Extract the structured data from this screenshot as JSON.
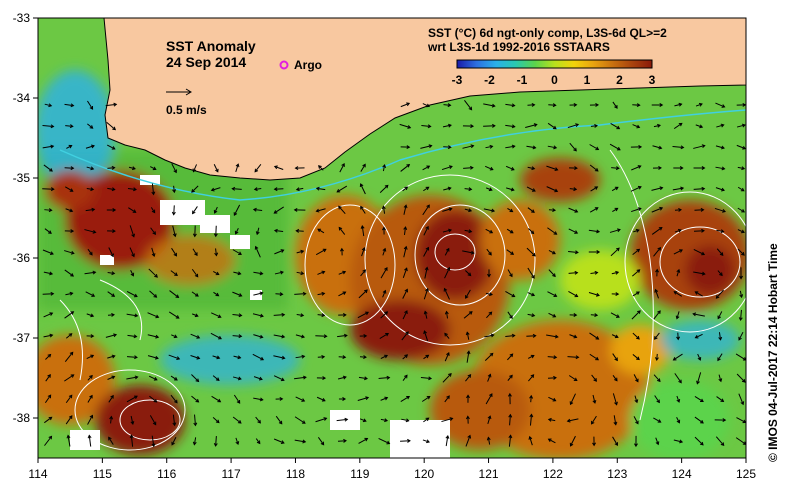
{
  "map": {
    "title": "SST Anomaly",
    "date": "24 Sep 2014",
    "legend_argo": "Argo",
    "arrow_scale_label": "0.5 m/s",
    "colorbar": {
      "title_line1": "SST (°C) 6d ngt-only comp, L3S-6d QL>=2",
      "title_line2": "wrt L3S-1d 1992-2016 SSTAARS",
      "ticks": [
        "-3",
        "-2",
        "-1",
        "0",
        "1",
        "2",
        "3"
      ],
      "colors": [
        "#1a1aa8",
        "#2d6fe0",
        "#2ab0e8",
        "#29c9b0",
        "#5cd34b",
        "#b8e01e",
        "#f2d20b",
        "#e8a310",
        "#c9700f",
        "#a8420d",
        "#8a1a0a"
      ]
    },
    "x_ticks": [
      "114",
      "115",
      "116",
      "117",
      "118",
      "119",
      "120",
      "121",
      "122",
      "123",
      "124",
      "125"
    ],
    "y_ticks": [
      "-33",
      "-34",
      "-35",
      "-36",
      "-37",
      "-38"
    ],
    "credit": "©  IMOS 04-Jul-2017 22:14 Hobart Time",
    "colors": {
      "land": "#f8c8a0",
      "ocean_base": "#6cc844",
      "current_line": "#40d0e0",
      "contour": "#ffffff"
    }
  }
}
